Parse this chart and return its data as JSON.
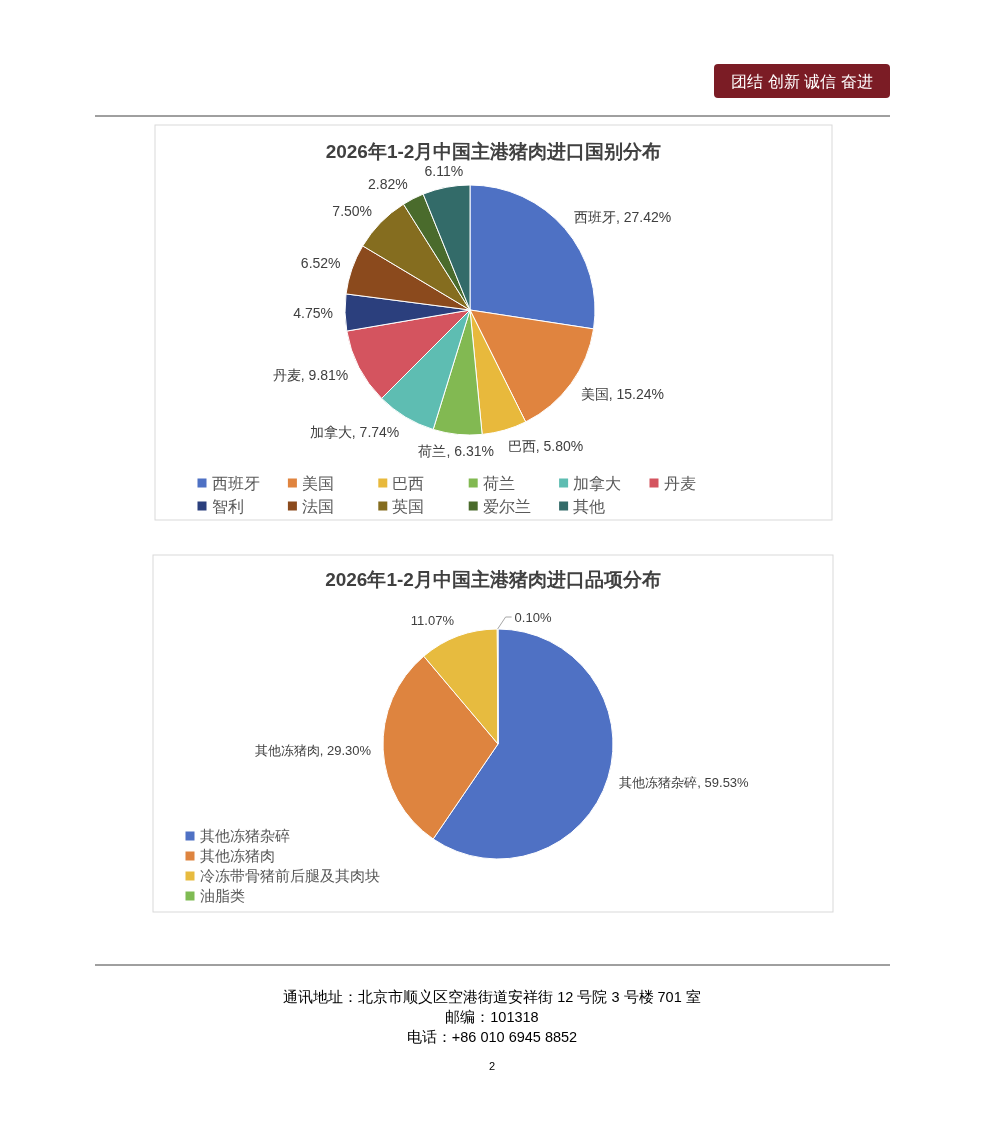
{
  "chart_data": [
    {
      "type": "other",
      "annotations": [
        "团结 创新 诚信 奋进"
      ]
    },
    {
      "type": "pie",
      "title": "2026年1-2月中国主港猪肉进口国别分布",
      "categories": [
        "西班牙",
        "美国",
        "巴西",
        "荷兰",
        "加拿大",
        "丹麦",
        "智利",
        "法国",
        "英国",
        "爱尔兰",
        "其他"
      ],
      "values": [
        27.42,
        15.24,
        5.8,
        6.31,
        7.74,
        9.81,
        4.75,
        6.52,
        7.5,
        2.82,
        6.11
      ],
      "colors": [
        "#4e71c4",
        "#e0843f",
        "#e8b93c",
        "#82b952",
        "#5ebdb2",
        "#d4545f",
        "#2b3f7d",
        "#8b4a1d",
        "#856d1f",
        "#4a6b2c",
        "#336b69"
      ],
      "value_labels": [
        "西班牙, 27.42%",
        "美国, 15.24%",
        "巴西, 5.80%",
        "荷兰, 6.31%",
        "加拿大, 7.74%",
        "丹麦, 9.81%",
        "4.75%",
        "6.52%",
        "7.50%",
        "2.82%",
        "6.11%"
      ],
      "legend": "bottom"
    },
    {
      "type": "pie",
      "title": "2026年1-2月中国主港猪肉进口品项分布",
      "categories": [
        "其他冻猪杂碎",
        "其他冻猪肉",
        "冷冻带骨猪前后腿及其肉块",
        "油脂类"
      ],
      "values": [
        59.53,
        29.3,
        11.07,
        0.1
      ],
      "colors": [
        "#4f71c4",
        "#de843f",
        "#e7bb3f",
        "#7fbb53"
      ],
      "value_labels": [
        "其他冻猪杂碎, 59.53%",
        "其他冻猪肉, 29.30%",
        "11.07%",
        "0.10%"
      ],
      "legend": "bottom left"
    },
    {
      "type": "other",
      "annotations": [
        "通讯地址：北京市顺义区空港街道安祥街 12 号院 3 号楼 701 室",
        "邮编：101318",
        "电话：+86 010 6945 8852",
        "2"
      ]
    }
  ]
}
